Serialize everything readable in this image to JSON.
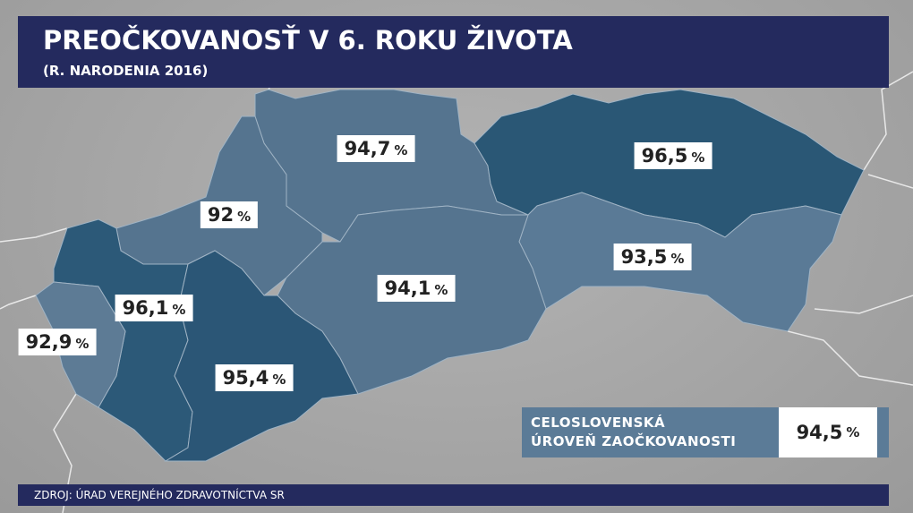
{
  "header": {
    "title": "PREOČKOVANOSŤ V 6. ROKU ŽIVOTA",
    "subtitle": "(R. NARODENIA 2016)"
  },
  "regions": [
    {
      "value": "94,7",
      "unit": "%"
    },
    {
      "value": "96,5",
      "unit": "%"
    },
    {
      "value": "92",
      "unit": "%"
    },
    {
      "value": "93,5",
      "unit": "%"
    },
    {
      "value": "94,1",
      "unit": "%"
    },
    {
      "value": "96,1",
      "unit": "%"
    },
    {
      "value": "92,9",
      "unit": "%"
    },
    {
      "value": "95,4",
      "unit": "%"
    }
  ],
  "summary": {
    "label_line1": "CELOSLOVENSKÁ",
    "label_line2": "ÚROVEŇ ZAOČKOVANOSTI",
    "value": "94,5",
    "unit": "%"
  },
  "source": "ZDROJ: ÚRAD VEREJNÉHO ZDRAVOTNÍCTVA SR"
}
